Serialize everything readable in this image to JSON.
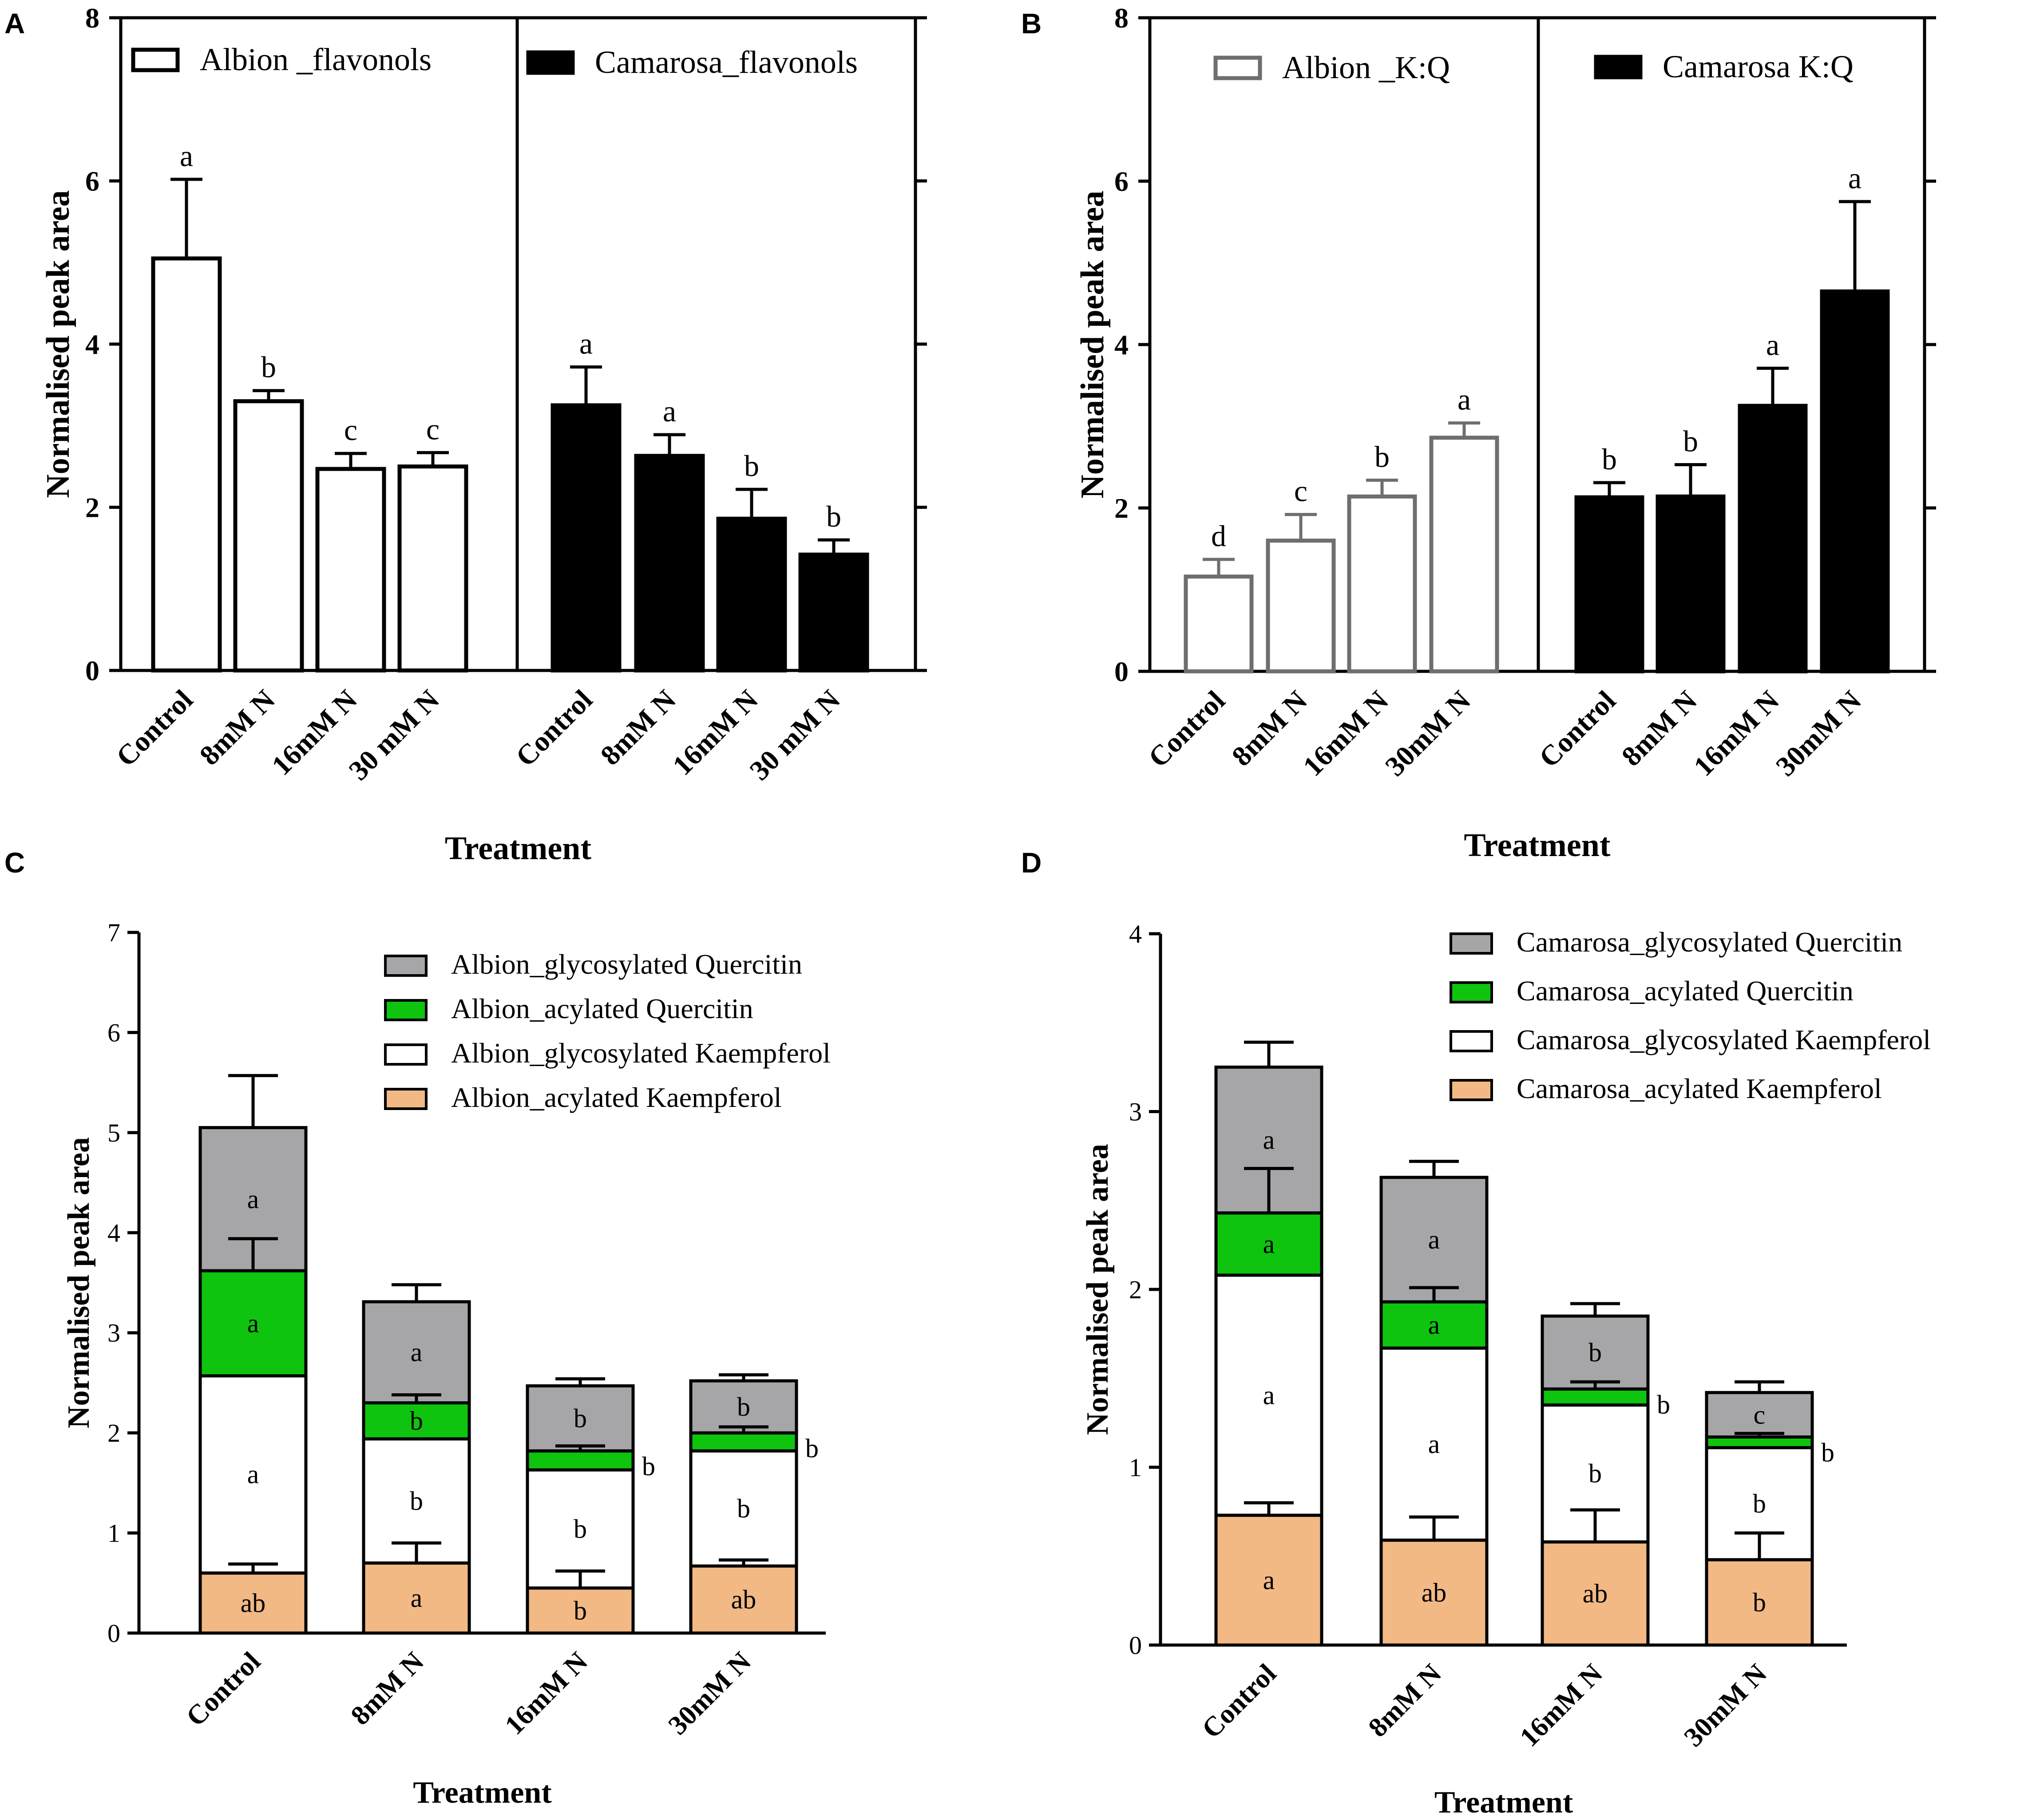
{
  "colors": {
    "axis": "#000000",
    "albion_bar_edge": "#000000",
    "albion_kq_edge": "#6e6e6e",
    "camarosa_fill": "#000000",
    "glyQ": "#a6a6a8",
    "acyQ": "#0ec40e",
    "glyK": "#ffffff",
    "acyK": "#f2b985"
  },
  "chart_data": [
    {
      "panel": "A",
      "type": "bar",
      "ylabel": "Normalised peak area",
      "xlabel": "Treatment",
      "ylim": [
        0,
        8
      ],
      "yticks": [
        "0",
        "2",
        "4",
        "6",
        "8"
      ],
      "groups": [
        {
          "name": "Albion _flavonols",
          "style": "open",
          "categories": [
            "Control",
            "8mM N",
            "16mM N",
            "30 mM N"
          ],
          "values": [
            5.05,
            3.3,
            2.47,
            2.5
          ],
          "errors": [
            0.97,
            0.13,
            0.19,
            0.17
          ],
          "letters": [
            "a",
            "b",
            "c",
            "c"
          ]
        },
        {
          "name": "Camarosa_flavonols",
          "style": "filled",
          "categories": [
            "Control",
            "8mM N",
            "16mM N",
            "30 mM N"
          ],
          "values": [
            3.25,
            2.63,
            1.86,
            1.42
          ],
          "errors": [
            0.47,
            0.26,
            0.36,
            0.18
          ],
          "letters": [
            "a",
            "a",
            "b",
            "b"
          ]
        }
      ]
    },
    {
      "panel": "B",
      "type": "bar",
      "ylabel": "Normalised peak area",
      "xlabel": "Treatment",
      "ylim": [
        0,
        8
      ],
      "yticks": [
        "0",
        "2",
        "4",
        "6",
        "8"
      ],
      "groups": [
        {
          "name": "Albion _K:Q",
          "style": "open-grey",
          "categories": [
            "Control",
            "8mM N",
            "16mM N",
            "30mM N"
          ],
          "values": [
            1.16,
            1.6,
            2.14,
            2.86
          ],
          "errors": [
            0.21,
            0.32,
            0.2,
            0.18
          ],
          "letters": [
            "d",
            "c",
            "b",
            "a"
          ]
        },
        {
          "name": "Camarosa K:Q",
          "style": "filled",
          "categories": [
            "Control",
            "8mM N",
            "16mM N",
            "30mM N"
          ],
          "values": [
            2.13,
            2.14,
            3.25,
            4.65
          ],
          "errors": [
            0.18,
            0.39,
            0.46,
            1.1
          ],
          "letters": [
            "b",
            "b",
            "a",
            "a"
          ]
        }
      ]
    },
    {
      "panel": "C",
      "type": "stacked-bar",
      "ylabel": "Normalised peak area",
      "xlabel": "Treatment",
      "ylim": [
        0,
        7
      ],
      "yticks": [
        "0",
        "1",
        "2",
        "3",
        "4",
        "5",
        "6",
        "7"
      ],
      "categories": [
        "Control",
        "8mM N",
        "16mM N",
        "30mM N"
      ],
      "series": [
        {
          "name": "Albion_acylated Kaempferol",
          "key": "acyK",
          "values": [
            0.6,
            0.7,
            0.45,
            0.67
          ],
          "errors": [
            0.09,
            0.2,
            0.17,
            0.06
          ],
          "letters": [
            "ab",
            "a",
            "b",
            "ab"
          ]
        },
        {
          "name": "Albion_glycosylated Kaempferol",
          "key": "glyK",
          "values": [
            1.97,
            1.24,
            1.18,
            1.15
          ],
          "errors": [
            0.0,
            0.0,
            0.0,
            0.0
          ],
          "letters": [
            "a",
            "b",
            "b",
            "b"
          ]
        },
        {
          "name": "Albion_acylated Quercitin",
          "key": "acyQ",
          "values": [
            1.05,
            0.36,
            0.19,
            0.18
          ],
          "errors": [
            0.32,
            0.08,
            0.05,
            0.06
          ],
          "letters": [
            "a",
            "b",
            "b",
            "b"
          ]
        },
        {
          "name": "Albion_glycosylated Quercitin",
          "key": "glyQ",
          "values": [
            1.43,
            1.01,
            0.65,
            0.52
          ],
          "errors": [
            0.22,
            0.05,
            0.03,
            0.04
          ],
          "letters": [
            "a",
            "a",
            "b",
            "b"
          ]
        }
      ],
      "totals_error": [
        0.52,
        0.17,
        0.07,
        0.06
      ],
      "legend_order": [
        3,
        2,
        1,
        0
      ]
    },
    {
      "panel": "D",
      "type": "stacked-bar",
      "ylabel": "Normalised peak area",
      "xlabel": "Treatment",
      "ylim": [
        0,
        4
      ],
      "yticks": [
        "0",
        "1",
        "2",
        "3",
        "4"
      ],
      "categories": [
        "Control",
        "8mM N",
        "16mM N",
        "30mM N"
      ],
      "series": [
        {
          "name": "Camarosa_acylated Kaempferol",
          "key": "acyK",
          "values": [
            0.73,
            0.59,
            0.58,
            0.48
          ],
          "errors": [
            0.07,
            0.13,
            0.18,
            0.15
          ],
          "letters": [
            "a",
            "ab",
            "ab",
            "b"
          ]
        },
        {
          "name": "Camarosa_glycosylated Kaempferol",
          "key": "glyK",
          "values": [
            1.35,
            1.08,
            0.77,
            0.63
          ],
          "errors": [
            0.0,
            0.0,
            0.0,
            0.0
          ],
          "letters": [
            "a",
            "a",
            "b",
            "b"
          ]
        },
        {
          "name": "Camarosa_acylated Quercitin",
          "key": "acyQ",
          "values": [
            0.35,
            0.26,
            0.09,
            0.06
          ],
          "errors": [
            0.25,
            0.08,
            0.04,
            0.02
          ],
          "letters": [
            "a",
            "a",
            "b",
            "b"
          ]
        },
        {
          "name": "Camarosa_glycosylated Quercitin",
          "key": "glyQ",
          "values": [
            0.82,
            0.7,
            0.41,
            0.25
          ],
          "errors": [
            0.07,
            0.07,
            0.03,
            0.02
          ],
          "letters": [
            "a",
            "a",
            "b",
            "c"
          ]
        }
      ],
      "totals_error": [
        0.14,
        0.09,
        0.07,
        0.06
      ],
      "legend_order": [
        3,
        2,
        1,
        0
      ]
    }
  ]
}
